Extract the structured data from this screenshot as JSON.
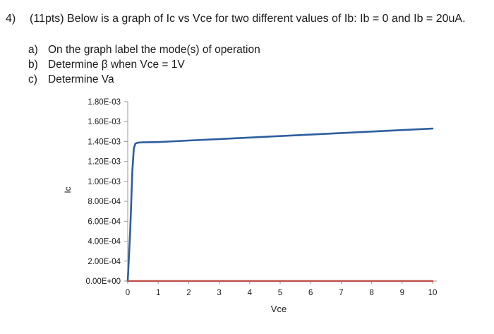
{
  "question": {
    "number": "4)",
    "text": "(11pts) Below is a graph of Ic vs Vce for two different values of Ib:  Ib = 0 and Ib = 20uA."
  },
  "parts": [
    {
      "letter": "a)",
      "text": "On the graph label the mode(s) of operation"
    },
    {
      "letter": "b)",
      "text": "Determine β when Vce = 1V"
    },
    {
      "letter": "c)",
      "text": "Determine Va"
    }
  ],
  "chart_data": {
    "type": "line",
    "title": "",
    "xlabel": "Vce",
    "ylabel": "Ic",
    "xlim": [
      0,
      10
    ],
    "ylim": [
      0,
      0.0018
    ],
    "x_ticks": [
      "0",
      "1",
      "2",
      "3",
      "4",
      "5",
      "6",
      "7",
      "8",
      "9",
      "10"
    ],
    "y_ticks": [
      "0.00E+00",
      "2.00E-04",
      "4.00E-04",
      "6.00E-04",
      "8.00E-04",
      "1.00E-03",
      "1.20E-03",
      "1.40E-03",
      "1.60E-03",
      "1.80E-03"
    ],
    "grid": false,
    "series": [
      {
        "color": "#2e5e9e",
        "x": [
          0,
          0.08,
          0.15,
          0.2,
          0.25,
          0.35,
          0.5,
          1,
          2,
          3,
          4,
          5,
          6,
          7,
          8,
          9,
          10
        ],
        "y": [
          0.0,
          0.0005,
          0.0011,
          0.00133,
          0.00138,
          0.00139,
          0.001392,
          0.001395,
          0.00141,
          0.001425,
          0.00144,
          0.001455,
          0.00147,
          0.001485,
          0.0015,
          0.001515,
          0.00153
        ]
      },
      {
        "color": "#c0504d",
        "x": [
          0,
          10
        ],
        "y": [
          0.0,
          0.0
        ]
      }
    ]
  }
}
